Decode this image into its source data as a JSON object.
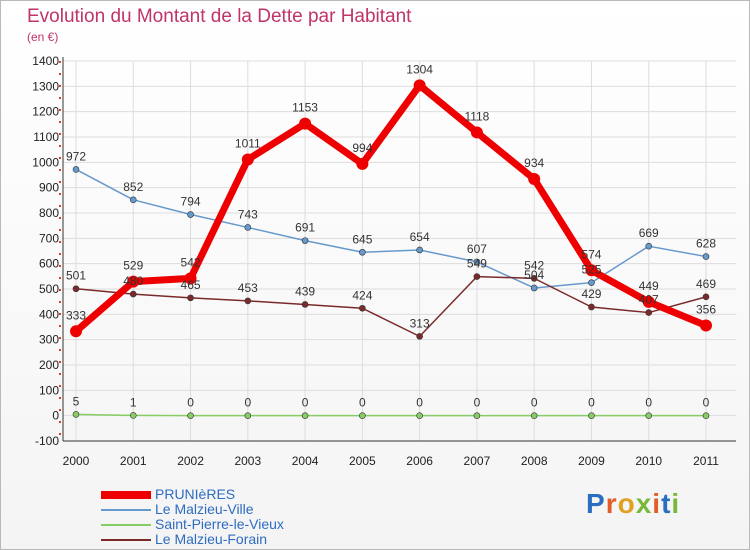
{
  "title": "Evolution du Montant de la Dette par Habitant",
  "subtitle": "(en €)",
  "logo": "Proxiti",
  "colors": {
    "title": "#c0336b",
    "legend_text": "#2d6cc2",
    "axis": "#222222",
    "grid": "#dddddd"
  },
  "chart_data": {
    "type": "line",
    "title": "Evolution du Montant de la Dette par Habitant",
    "ylabel": "(en €)",
    "xlabel": "",
    "ylim": [
      -100,
      1400
    ],
    "yticks": [
      -100,
      0,
      100,
      200,
      300,
      400,
      500,
      600,
      700,
      800,
      900,
      1000,
      1100,
      1200,
      1300,
      1400
    ],
    "categories": [
      "2000",
      "2001",
      "2002",
      "2003",
      "2004",
      "2005",
      "2006",
      "2007",
      "2008",
      "2009",
      "2010",
      "2011"
    ],
    "grid": true,
    "legend_position": "bottom-left",
    "series": [
      {
        "name": "PRUNIèRES",
        "color": "#ee0000",
        "width": 7,
        "values": [
          333,
          529,
          542,
          1011,
          1153,
          994,
          1304,
          1118,
          934,
          574,
          449,
          356
        ]
      },
      {
        "name": "Le Malzieu-Ville",
        "color": "#6699cc",
        "width": 1.5,
        "values": [
          972,
          852,
          794,
          743,
          691,
          645,
          654,
          607,
          504,
          525,
          669,
          628
        ]
      },
      {
        "name": "Saint-Pierre-le-Vieux",
        "color": "#88cc66",
        "width": 1.5,
        "values": [
          5,
          1,
          0,
          0,
          0,
          0,
          0,
          0,
          0,
          0,
          0,
          0
        ]
      },
      {
        "name": "Le Malzieu-Forain",
        "color": "#7a2a2a",
        "width": 1.5,
        "values": [
          501,
          480,
          465,
          453,
          439,
          424,
          313,
          549,
          542,
          429,
          407,
          469
        ]
      }
    ]
  }
}
